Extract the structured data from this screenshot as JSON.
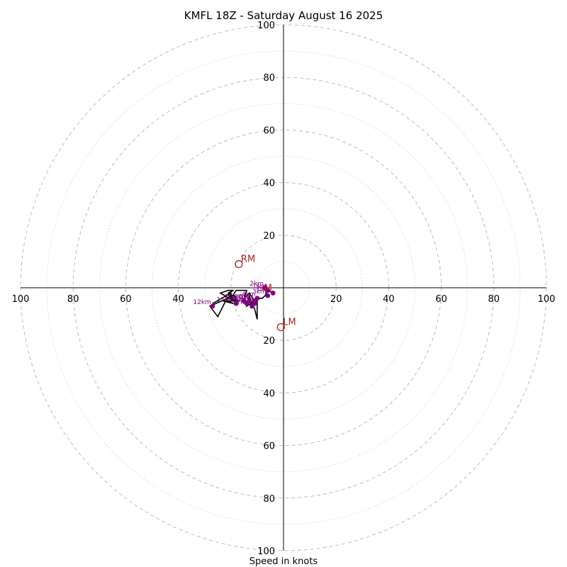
{
  "chart_data": {
    "type": "hodograph",
    "title": "KMFL 18Z - Saturday August 16 2025",
    "xlabel": "Speed in knots",
    "units": "knots",
    "range": [
      -100,
      100
    ],
    "major_rings": [
      20,
      40,
      60,
      80,
      100
    ],
    "minor_rings": [
      10,
      30,
      50,
      70,
      90
    ],
    "x_ticks": [
      "100",
      "80",
      "60",
      "40",
      "20",
      "",
      "20",
      "40",
      "60",
      "80",
      "100"
    ],
    "y_ticks": [
      "100",
      "80",
      "60",
      "40",
      "20",
      "",
      "20",
      "40",
      "60",
      "80",
      "100"
    ],
    "colors": {
      "trace": "#000000",
      "height_points": "#800080",
      "storm_motion": "#b22222",
      "rings": "#bdbdbd"
    },
    "trace": [
      {
        "u": -4,
        "v": -2
      },
      {
        "u": -6,
        "v": -1
      },
      {
        "u": -7,
        "v": -3
      },
      {
        "u": -8,
        "v": -4
      },
      {
        "u": -10,
        "v": -4
      },
      {
        "u": -10,
        "v": -12
      },
      {
        "u": -11,
        "v": -8
      },
      {
        "u": -12,
        "v": -6
      },
      {
        "u": -13,
        "v": -3
      },
      {
        "u": -14,
        "v": -7
      },
      {
        "u": -11,
        "v": -5
      },
      {
        "u": -13,
        "v": -2
      },
      {
        "u": -15,
        "v": -4
      },
      {
        "u": -14,
        "v": -1
      },
      {
        "u": -18,
        "v": -1
      },
      {
        "u": -20,
        "v": -4
      },
      {
        "u": -17,
        "v": -5
      },
      {
        "u": -21,
        "v": -5
      },
      {
        "u": -19,
        "v": -6
      },
      {
        "u": -23,
        "v": -5
      },
      {
        "u": -20,
        "v": -3
      },
      {
        "u": -21,
        "v": -2
      },
      {
        "u": -19,
        "v": -1
      },
      {
        "u": -21,
        "v": -1
      },
      {
        "u": -24,
        "v": -2
      },
      {
        "u": -19,
        "v": -5
      },
      {
        "u": -22,
        "v": -5
      },
      {
        "u": -25,
        "v": -11
      },
      {
        "u": -28,
        "v": -7
      },
      {
        "u": -19,
        "v": -3
      },
      {
        "u": -18,
        "v": -4
      },
      {
        "u": -19,
        "v": -5
      },
      {
        "u": -20,
        "v": -2
      },
      {
        "u": -27,
        "v": -6
      }
    ],
    "height_points": [
      {
        "label": "0km",
        "u": -4,
        "v": -2
      },
      {
        "label": "1km",
        "u": -6,
        "v": -1
      },
      {
        "label": "2km",
        "u": -7,
        "v": 0
      },
      {
        "label": "3km",
        "u": -6,
        "v": -3
      },
      {
        "label": "4km",
        "u": -10,
        "v": -4
      },
      {
        "label": "5km",
        "u": -11,
        "v": -5
      },
      {
        "label": "6km",
        "u": -11,
        "v": -6
      },
      {
        "label": "7km",
        "u": -12,
        "v": -7
      },
      {
        "label": "8km",
        "u": -13,
        "v": -5
      },
      {
        "label": "9km",
        "u": -14,
        "v": -6
      },
      {
        "label": "10km",
        "u": -15,
        "v": -5
      },
      {
        "label": "11km",
        "u": -18,
        "v": -6
      },
      {
        "label": "12km",
        "u": -27,
        "v": -7
      }
    ],
    "storm_motion": [
      {
        "label": "RM",
        "u": -17,
        "v": 9
      },
      {
        "label": "LM",
        "u": -1,
        "v": -15
      },
      {
        "label": "M",
        "u": -6,
        "v": -1
      }
    ]
  }
}
